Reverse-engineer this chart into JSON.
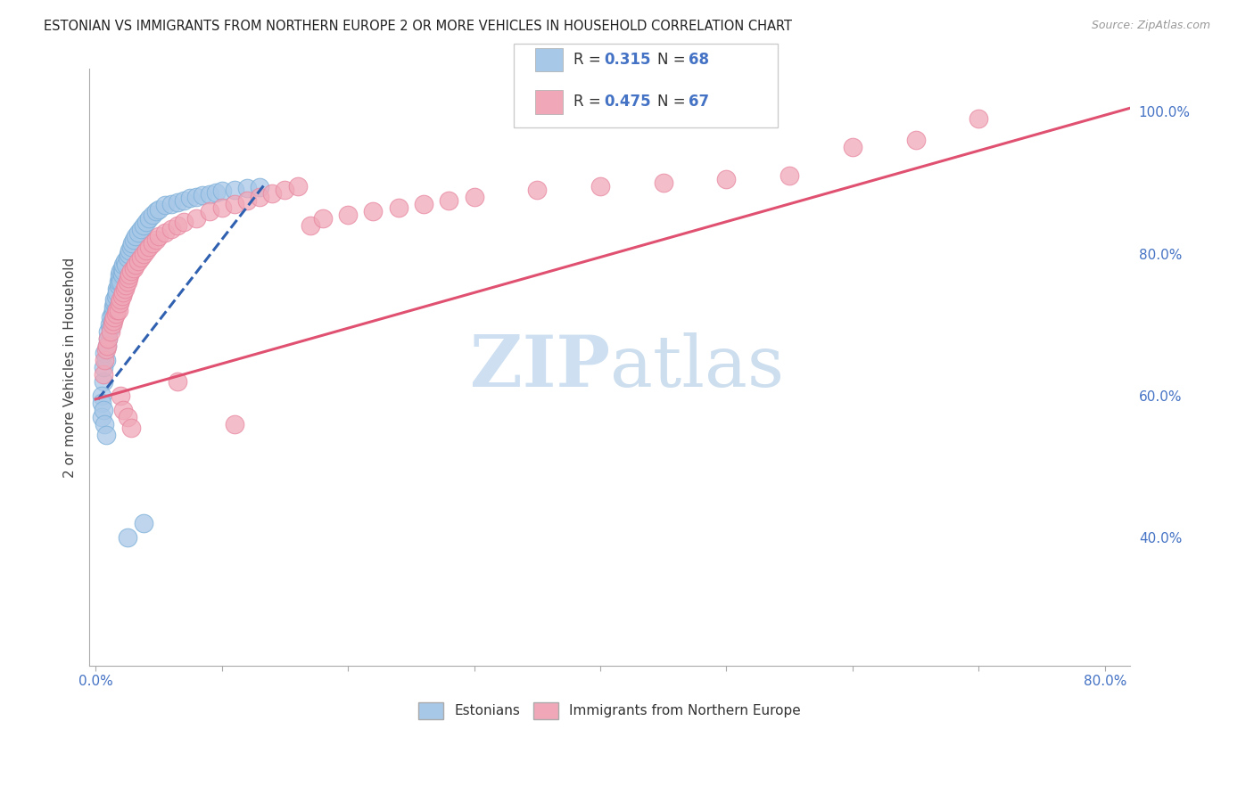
{
  "title": "ESTONIAN VS IMMIGRANTS FROM NORTHERN EUROPE 2 OR MORE VEHICLES IN HOUSEHOLD CORRELATION CHART",
  "source": "Source: ZipAtlas.com",
  "ylabel": "2 or more Vehicles in Household",
  "xlim": [
    -0.005,
    0.82
  ],
  "ylim": [
    0.22,
    1.06
  ],
  "xticks": [
    0.0,
    0.1,
    0.2,
    0.3,
    0.4,
    0.5,
    0.6,
    0.7,
    0.8
  ],
  "xticklabels": [
    "0.0%",
    "",
    "",
    "",
    "",
    "",
    "",
    "",
    "80.0%"
  ],
  "yticks_right": [
    0.4,
    0.6,
    0.8,
    1.0
  ],
  "yticklabels_right": [
    "40.0%",
    "60.0%",
    "80.0%",
    "100.0%"
  ],
  "blue_color": "#A8C8E8",
  "pink_color": "#F0A8B8",
  "blue_edge_color": "#7EB0D8",
  "pink_edge_color": "#E888A0",
  "blue_line_color": "#3060B0",
  "pink_line_color": "#E05070",
  "watermark_color": "#C8DCF0",
  "grid_color": "#CCCCCC",
  "title_color": "#222222",
  "axis_label_color": "#444444",
  "tick_color": "#4472C4",
  "background_color": "#FFFFFF",
  "legend_r1": "0.315",
  "legend_n1": "68",
  "legend_r2": "0.475",
  "legend_n2": "67",
  "blue_line_x": [
    0.002,
    0.135
  ],
  "blue_line_y": [
    0.595,
    0.9
  ],
  "pink_line_x": [
    0.0,
    0.82
  ],
  "pink_line_y": [
    0.595,
    1.005
  ],
  "blue_scatter_x": [
    0.006,
    0.006,
    0.007,
    0.008,
    0.009,
    0.01,
    0.01,
    0.011,
    0.012,
    0.012,
    0.013,
    0.013,
    0.014,
    0.014,
    0.015,
    0.015,
    0.016,
    0.016,
    0.017,
    0.017,
    0.018,
    0.018,
    0.019,
    0.019,
    0.02,
    0.02,
    0.021,
    0.021,
    0.022,
    0.022,
    0.023,
    0.024,
    0.025,
    0.026,
    0.027,
    0.028,
    0.029,
    0.03,
    0.032,
    0.034,
    0.036,
    0.038,
    0.04,
    0.042,
    0.045,
    0.048,
    0.05,
    0.055,
    0.06,
    0.065,
    0.07,
    0.075,
    0.08,
    0.085,
    0.09,
    0.095,
    0.1,
    0.11,
    0.12,
    0.13,
    0.005,
    0.005,
    0.005,
    0.006,
    0.007,
    0.008,
    0.025,
    0.038
  ],
  "blue_scatter_y": [
    0.62,
    0.64,
    0.66,
    0.65,
    0.67,
    0.68,
    0.69,
    0.7,
    0.695,
    0.71,
    0.705,
    0.715,
    0.72,
    0.725,
    0.73,
    0.735,
    0.72,
    0.74,
    0.75,
    0.745,
    0.755,
    0.76,
    0.765,
    0.77,
    0.76,
    0.775,
    0.77,
    0.78,
    0.775,
    0.785,
    0.79,
    0.785,
    0.795,
    0.8,
    0.805,
    0.81,
    0.815,
    0.82,
    0.825,
    0.83,
    0.835,
    0.84,
    0.845,
    0.85,
    0.855,
    0.86,
    0.862,
    0.868,
    0.87,
    0.872,
    0.875,
    0.878,
    0.88,
    0.882,
    0.884,
    0.886,
    0.888,
    0.89,
    0.892,
    0.894,
    0.6,
    0.59,
    0.57,
    0.58,
    0.56,
    0.545,
    0.4,
    0.42
  ],
  "pink_scatter_x": [
    0.006,
    0.007,
    0.008,
    0.009,
    0.01,
    0.012,
    0.013,
    0.014,
    0.015,
    0.016,
    0.017,
    0.018,
    0.019,
    0.02,
    0.021,
    0.022,
    0.023,
    0.024,
    0.025,
    0.026,
    0.027,
    0.028,
    0.03,
    0.032,
    0.034,
    0.036,
    0.038,
    0.04,
    0.042,
    0.045,
    0.048,
    0.05,
    0.055,
    0.06,
    0.065,
    0.07,
    0.08,
    0.09,
    0.1,
    0.11,
    0.12,
    0.13,
    0.14,
    0.15,
    0.16,
    0.17,
    0.18,
    0.2,
    0.22,
    0.24,
    0.26,
    0.28,
    0.3,
    0.35,
    0.4,
    0.45,
    0.5,
    0.55,
    0.6,
    0.65,
    0.7,
    0.02,
    0.022,
    0.025,
    0.028,
    0.065,
    0.11
  ],
  "pink_scatter_y": [
    0.63,
    0.65,
    0.665,
    0.67,
    0.68,
    0.69,
    0.7,
    0.705,
    0.71,
    0.715,
    0.72,
    0.72,
    0.73,
    0.735,
    0.74,
    0.745,
    0.75,
    0.755,
    0.76,
    0.765,
    0.77,
    0.775,
    0.78,
    0.785,
    0.79,
    0.795,
    0.8,
    0.805,
    0.81,
    0.815,
    0.82,
    0.825,
    0.83,
    0.835,
    0.84,
    0.845,
    0.85,
    0.86,
    0.865,
    0.87,
    0.875,
    0.88,
    0.885,
    0.89,
    0.895,
    0.84,
    0.85,
    0.855,
    0.86,
    0.865,
    0.87,
    0.875,
    0.88,
    0.89,
    0.895,
    0.9,
    0.905,
    0.91,
    0.95,
    0.96,
    0.99,
    0.6,
    0.58,
    0.57,
    0.555,
    0.62,
    0.56
  ]
}
